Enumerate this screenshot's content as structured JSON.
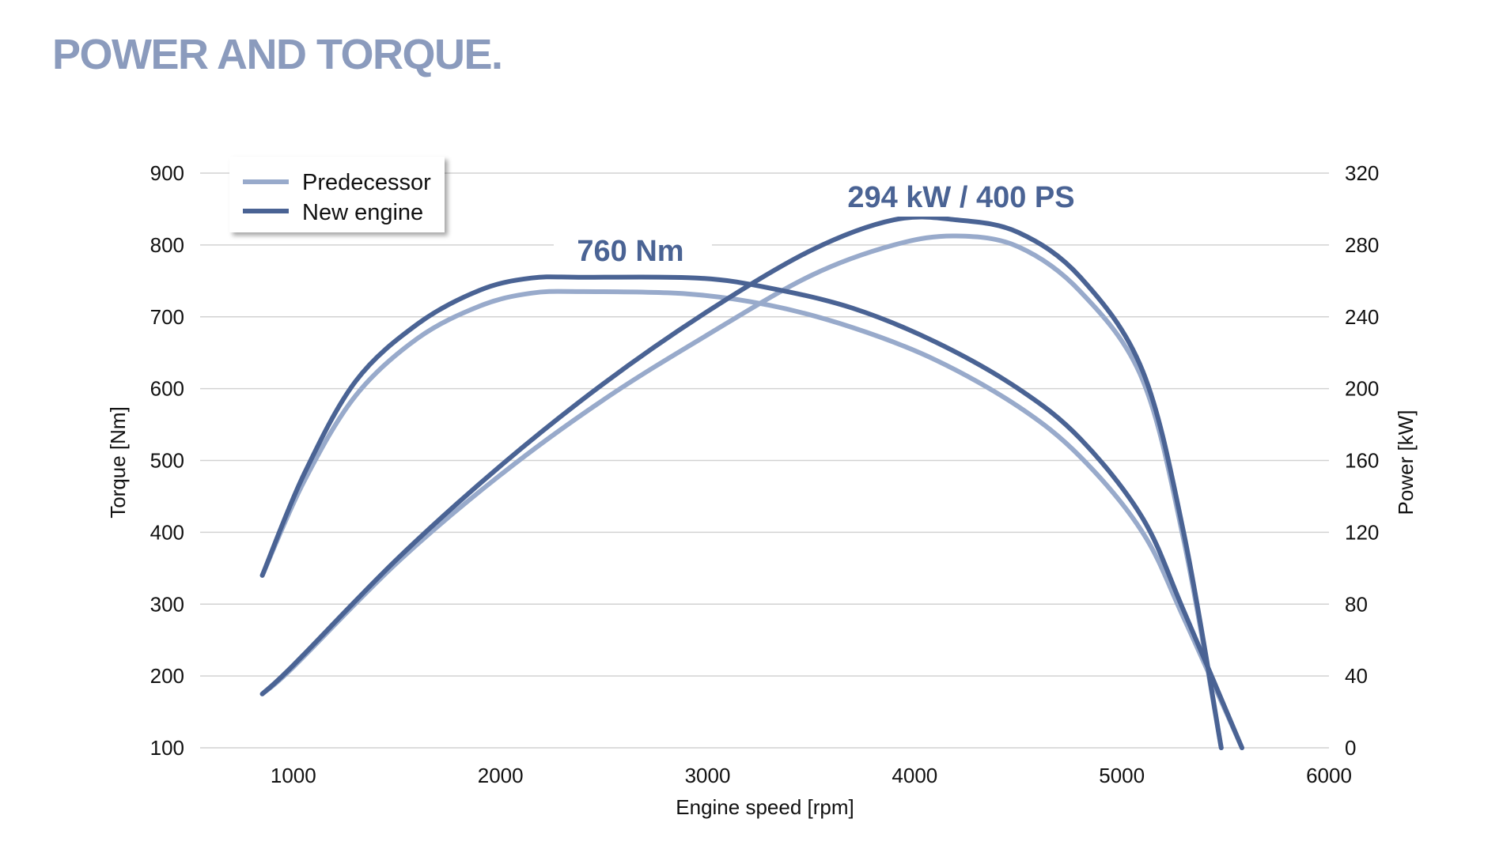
{
  "title": "POWER AND TORQUE.",
  "colors": {
    "title": "#8b9bbd",
    "predecessor": "#98aacb",
    "new_engine": "#4a6394",
    "annotation": "#4a6394",
    "grid": "#d2d2d2"
  },
  "chart_data": {
    "type": "line",
    "title": "",
    "xlabel": "Engine speed [rpm]",
    "ylabel_left": "Torque [Nm]",
    "ylabel_right": "Power [kW]",
    "xlim": [
      550,
      6000
    ],
    "ylim_left": [
      100,
      900
    ],
    "ylim_right": [
      0,
      320
    ],
    "x_ticks": [
      "1000",
      "2000",
      "3000",
      "4000",
      "5000",
      "6000"
    ],
    "y_ticks_left": [
      "100",
      "200",
      "300",
      "400",
      "500",
      "600",
      "700",
      "800",
      "900"
    ],
    "y_ticks_right": [
      "0",
      "40",
      "80",
      "120",
      "160",
      "200",
      "240",
      "280",
      "320"
    ],
    "grid": true,
    "legend": {
      "position": "top-left",
      "entries": [
        "Predecessor",
        "New engine"
      ]
    },
    "annotations": [
      "760 Nm",
      "294 kW / 400 PS"
    ],
    "series": [
      {
        "name": "Predecessor",
        "role": "torque",
        "axis": "left",
        "x": [
          850,
          1050,
          1300,
          1600,
          1900,
          2150,
          2400,
          2900,
          3300,
          3700,
          4100,
          4500,
          4800,
          5100,
          5300,
          5580
        ],
        "y": [
          340,
          470,
          590,
          670,
          715,
          733,
          735,
          732,
          716,
          685,
          640,
          575,
          505,
          400,
          280,
          100
        ]
      },
      {
        "name": "New engine",
        "role": "torque",
        "axis": "left",
        "x": [
          850,
          1050,
          1300,
          1600,
          1900,
          2150,
          2400,
          2950,
          3300,
          3700,
          4100,
          4500,
          4800,
          5100,
          5300,
          5580
        ],
        "y": [
          340,
          480,
          610,
          690,
          737,
          754,
          755,
          754,
          740,
          712,
          665,
          600,
          530,
          420,
          290,
          100
        ]
      },
      {
        "name": "Predecessor",
        "role": "power",
        "axis": "right",
        "x": [
          850,
          1000,
          1500,
          2000,
          2500,
          3000,
          3500,
          3900,
          4200,
          4500,
          4800,
          5100,
          5300,
          5480
        ],
        "y": [
          30,
          45,
          103,
          152,
          194,
          230,
          263,
          280,
          285,
          279,
          254,
          205,
          115,
          0
        ]
      },
      {
        "name": "New engine",
        "role": "power",
        "axis": "right",
        "x": [
          850,
          1000,
          1500,
          2000,
          2500,
          3000,
          3500,
          3900,
          4200,
          4500,
          4800,
          5100,
          5300,
          5480
        ],
        "y": [
          30,
          46,
          105,
          157,
          203,
          243,
          277,
          294,
          294,
          287,
          262,
          210,
          119,
          0
        ]
      }
    ]
  }
}
